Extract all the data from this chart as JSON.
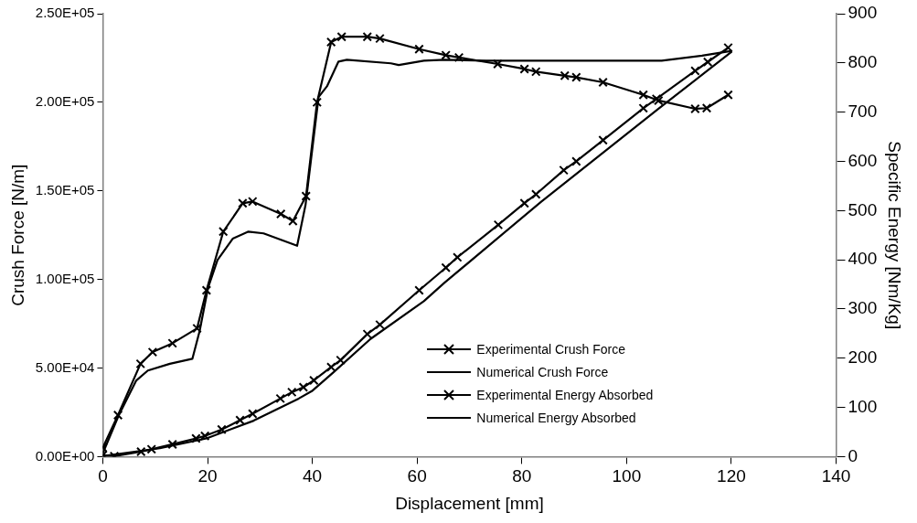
{
  "chart_data": {
    "type": "line",
    "xlabel": "Displacement [mm]",
    "ylabel": "Crush Force [N/m]",
    "y2label": "Specific Energy [Nm/Kg]",
    "xlim": [
      0,
      140
    ],
    "xticks": [
      0,
      20,
      40,
      60,
      80,
      100,
      120,
      140
    ],
    "ylim": [
      0,
      250000
    ],
    "yticks": [
      {
        "value": 0,
        "label": "0.00E+00"
      },
      {
        "value": 50000,
        "label": "5.00E+04"
      },
      {
        "value": 100000,
        "label": "1.00E+05"
      },
      {
        "value": 150000,
        "label": "1.50E+05"
      },
      {
        "value": 200000,
        "label": "2.00E+05"
      },
      {
        "value": 250000,
        "label": "2.50E+05"
      }
    ],
    "y2lim": [
      0,
      900
    ],
    "y2ticks": [
      0,
      100,
      200,
      300,
      400,
      500,
      600,
      700,
      800,
      900
    ],
    "grid": false,
    "legend": "bottom right",
    "line_style": "solid",
    "series": [
      {
        "name": "Experimental Crush Force",
        "color": "#000000",
        "marker": "cross",
        "x": [
          0,
          2.9,
          7.2,
          9.5,
          13.3,
          18,
          19.8,
          23,
          26.7,
          28.6,
          34,
          36.3,
          38.8,
          40.9,
          43.6,
          45.6,
          50.5,
          52.9,
          60.4,
          65.5,
          68,
          75.4,
          80.5,
          82.7,
          88.2,
          90.4,
          95.5,
          103.2,
          106.1,
          113.1,
          115.3,
          119.4
        ],
        "values": [
          5000,
          23400,
          52400,
          59000,
          64000,
          72400,
          93900,
          127000,
          143000,
          144000,
          137000,
          133000,
          147000,
          200000,
          234000,
          237000,
          237000,
          236000,
          230000,
          226600,
          225300,
          221600,
          218800,
          217300,
          215000,
          214100,
          211300,
          204200,
          201000,
          196300,
          196700,
          204200
        ]
      },
      {
        "name": "Numerical Crush Force",
        "color": "#000000",
        "marker": "none",
        "x": [
          0,
          3,
          6.4,
          8.6,
          12.8,
          17.1,
          18.5,
          20.1,
          21.9,
          24.8,
          27.8,
          30.7,
          37.1,
          38.7,
          41.2,
          42.8,
          45,
          46.6,
          55,
          56.5,
          61.3,
          65.2,
          73.2,
          80.5,
          106.7,
          114.4,
          120.1
        ],
        "values": [
          1900,
          23000,
          43000,
          48600,
          52400,
          55200,
          71000,
          95400,
          111000,
          123000,
          127000,
          126000,
          119000,
          142000,
          203000,
          209000,
          223000,
          224000,
          222000,
          221000,
          223500,
          224000,
          223500,
          223500,
          223500,
          226300,
          229000
        ]
      },
      {
        "name": "Experimental Energy Absorbed",
        "color": "#000000",
        "marker": "cross",
        "axis": "y2",
        "x": [
          0,
          2.2,
          7.3,
          9.3,
          13.3,
          17.8,
          19.5,
          22.7,
          26.2,
          28.6,
          33.9,
          36.1,
          38.3,
          40.3,
          43.6,
          45.4,
          50.5,
          52.9,
          60.4,
          65.5,
          67.7,
          75.5,
          80.5,
          82.7,
          88,
          90.4,
          95.5,
          103.2,
          105.7,
          113.1,
          115.5,
          119.4
        ],
        "values": [
          3,
          1,
          10,
          15,
          25,
          37,
          42,
          55,
          74,
          87,
          118,
          131,
          141,
          155,
          182,
          196,
          249,
          268,
          338,
          384,
          405,
          471,
          515,
          533,
          582,
          600,
          643,
          708,
          727,
          784,
          802,
          831
        ]
      },
      {
        "name": "Numerical Energy Absorbed",
        "color": "#000000",
        "marker": "none",
        "axis": "y2",
        "x": [
          0,
          10.9,
          19.8,
          28.8,
          37.4,
          39.9,
          44.1,
          51.1,
          61.3,
          65.2,
          83.7,
          106.1,
          120.1
        ],
        "values": [
          1,
          17,
          37,
          73,
          118,
          133,
          172,
          239,
          316,
          353,
          518,
          707,
          823
        ]
      }
    ]
  }
}
